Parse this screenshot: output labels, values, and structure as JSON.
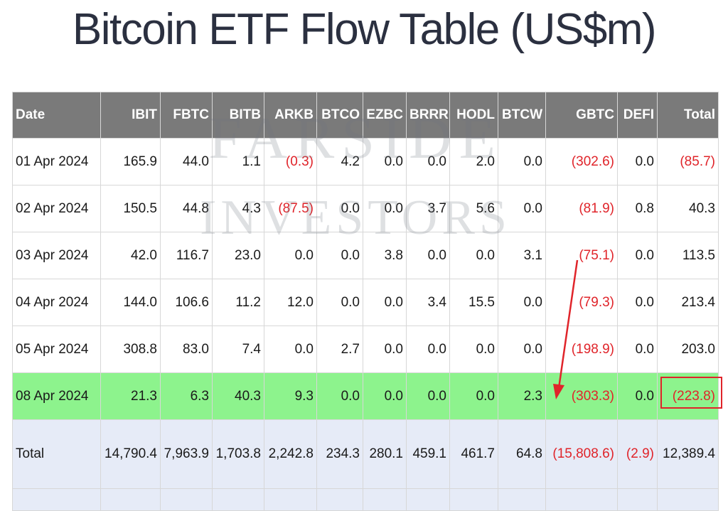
{
  "title": "Bitcoin ETF Flow Table (US$m)",
  "watermark": {
    "line1": "FARSIDE",
    "line2": "INVESTORS"
  },
  "table": {
    "columns": [
      "Date",
      "IBIT",
      "FBTC",
      "BITB",
      "ARKB",
      "BTCO",
      "EZBC",
      "BRRR",
      "HODL",
      "BTCW",
      "GBTC",
      "DEFI",
      "Total"
    ],
    "rows": [
      [
        "01 Apr 2024",
        "165.9",
        "44.0",
        "1.1",
        "(0.3)",
        "4.2",
        "0.0",
        "0.0",
        "2.0",
        "0.0",
        "(302.6)",
        "0.0",
        "(85.7)"
      ],
      [
        "02 Apr 2024",
        "150.5",
        "44.8",
        "4.3",
        "(87.5)",
        "0.0",
        "0.0",
        "3.7",
        "5.6",
        "0.0",
        "(81.9)",
        "0.8",
        "40.3"
      ],
      [
        "03 Apr 2024",
        "42.0",
        "116.7",
        "23.0",
        "0.0",
        "0.0",
        "3.8",
        "0.0",
        "0.0",
        "3.1",
        "(75.1)",
        "0.0",
        "113.5"
      ],
      [
        "04 Apr 2024",
        "144.0",
        "106.6",
        "11.2",
        "12.0",
        "0.0",
        "0.0",
        "3.4",
        "15.5",
        "0.0",
        "(79.3)",
        "0.0",
        "213.4"
      ],
      [
        "05 Apr 2024",
        "308.8",
        "83.0",
        "7.4",
        "0.0",
        "2.7",
        "0.0",
        "0.0",
        "0.0",
        "0.0",
        "(198.9)",
        "0.0",
        "203.0"
      ],
      [
        "08 Apr 2024",
        "21.3",
        "6.3",
        "40.3",
        "9.3",
        "0.0",
        "0.0",
        "0.0",
        "0.0",
        "2.3",
        "(303.3)",
        "0.0",
        "(223.8)"
      ]
    ],
    "totals": [
      "Total",
      "14,790.4",
      "7,963.9",
      "1,703.8",
      "2,242.8",
      "234.3",
      "280.1",
      "459.1",
      "461.7",
      "64.8",
      "(15,808.6)",
      "(2.9)",
      "12,389.4"
    ],
    "highlight_row_index": 5
  },
  "colors": {
    "header_bg": "#7a7a7a",
    "highlight_row": "#8df38d",
    "total_row": "#e6ebf7",
    "negative_text": "#e0242a",
    "annotation": "#e0242a"
  },
  "annotations": {
    "arrow": "red arrow from GBTC 03 Apr 2024 value down to GBTC 08 Apr 2024 value",
    "box": "red box around Total of 08 Apr 2024"
  }
}
